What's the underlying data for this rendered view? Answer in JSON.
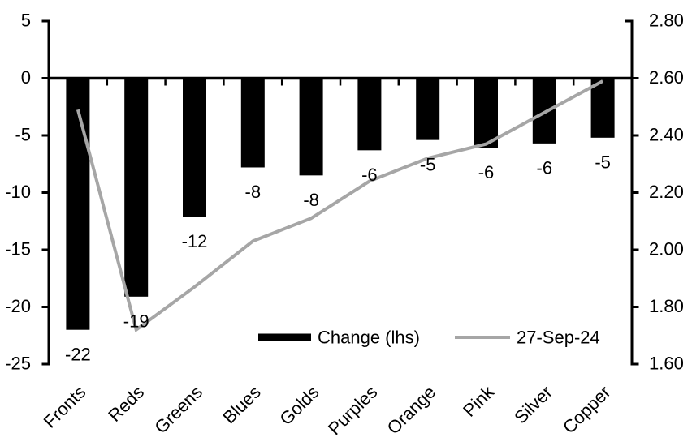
{
  "chart_data": {
    "type": "bar",
    "subtype": "combo-bar-line",
    "title": "",
    "background": "#FFFFFF",
    "grid": false,
    "categories": [
      "Fronts",
      "Reds",
      "Greens",
      "Blues",
      "Golds",
      "Purples",
      "Orange",
      "Pink",
      "Silver",
      "Copper"
    ],
    "series": [
      {
        "name": "Change (lhs)",
        "type": "bar",
        "axis": "left",
        "color": "#000000",
        "values": [
          -22,
          -19.1,
          -12.1,
          -7.8,
          -8.5,
          -6.3,
          -5.4,
          -6.1,
          -5.7,
          -5.2
        ],
        "labels": [
          "-22",
          "-19",
          "-12",
          "-8",
          "-8",
          "-6",
          "-5",
          "-6",
          "-6",
          "-5"
        ]
      },
      {
        "name": "27-Sep-24",
        "type": "line",
        "axis": "right",
        "color": "#A6A6A6",
        "values": [
          2.49,
          1.72,
          1.87,
          2.03,
          2.11,
          2.24,
          2.32,
          2.37,
          2.48,
          2.59
        ]
      }
    ],
    "left_axis": {
      "min": -25,
      "max": 5,
      "step": 5,
      "tick_labels": [
        "5",
        "0",
        "-5",
        "-10",
        "-15",
        "-20",
        "-25"
      ]
    },
    "right_axis": {
      "min": 1.6,
      "max": 2.8,
      "step": 0.2,
      "tick_labels": [
        "2.80",
        "2.60",
        "2.40",
        "2.20",
        "2.00",
        "1.80",
        "1.60"
      ]
    },
    "legend": {
      "position": "inside-bottom",
      "entries": [
        "Change (lhs)",
        "27-Sep-24"
      ]
    },
    "axis_color": "#000000",
    "text_color": "#000000"
  }
}
